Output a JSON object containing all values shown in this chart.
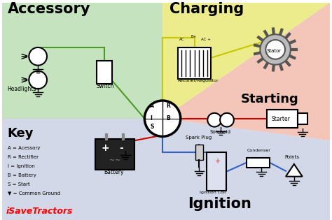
{
  "bg_color": "#ffffff",
  "regions": {
    "accessory_color": "#b8ddb0",
    "charging_color": "#e8e870",
    "starting_color": "#f0b8a8",
    "ignition_color": "#b0b8d8"
  },
  "labels": {
    "accessory": "Accessory",
    "charging": "Charging",
    "starting": "Starting",
    "ignition": "Ignition",
    "key": "Key",
    "watermark": "iSaveTractors"
  },
  "key_items": [
    "A = Acessory",
    "R = Rectifier",
    "I = Ignition",
    "B = Battery",
    "S = Start",
    "▼ = Common Ground"
  ],
  "switch_labels": [
    "A",
    "R",
    "I",
    "B",
    "S"
  ],
  "wire_colors": {
    "green": "#4a9a2a",
    "yellow": "#c8c800",
    "red": "#cc0000",
    "blue": "#3060c0"
  }
}
